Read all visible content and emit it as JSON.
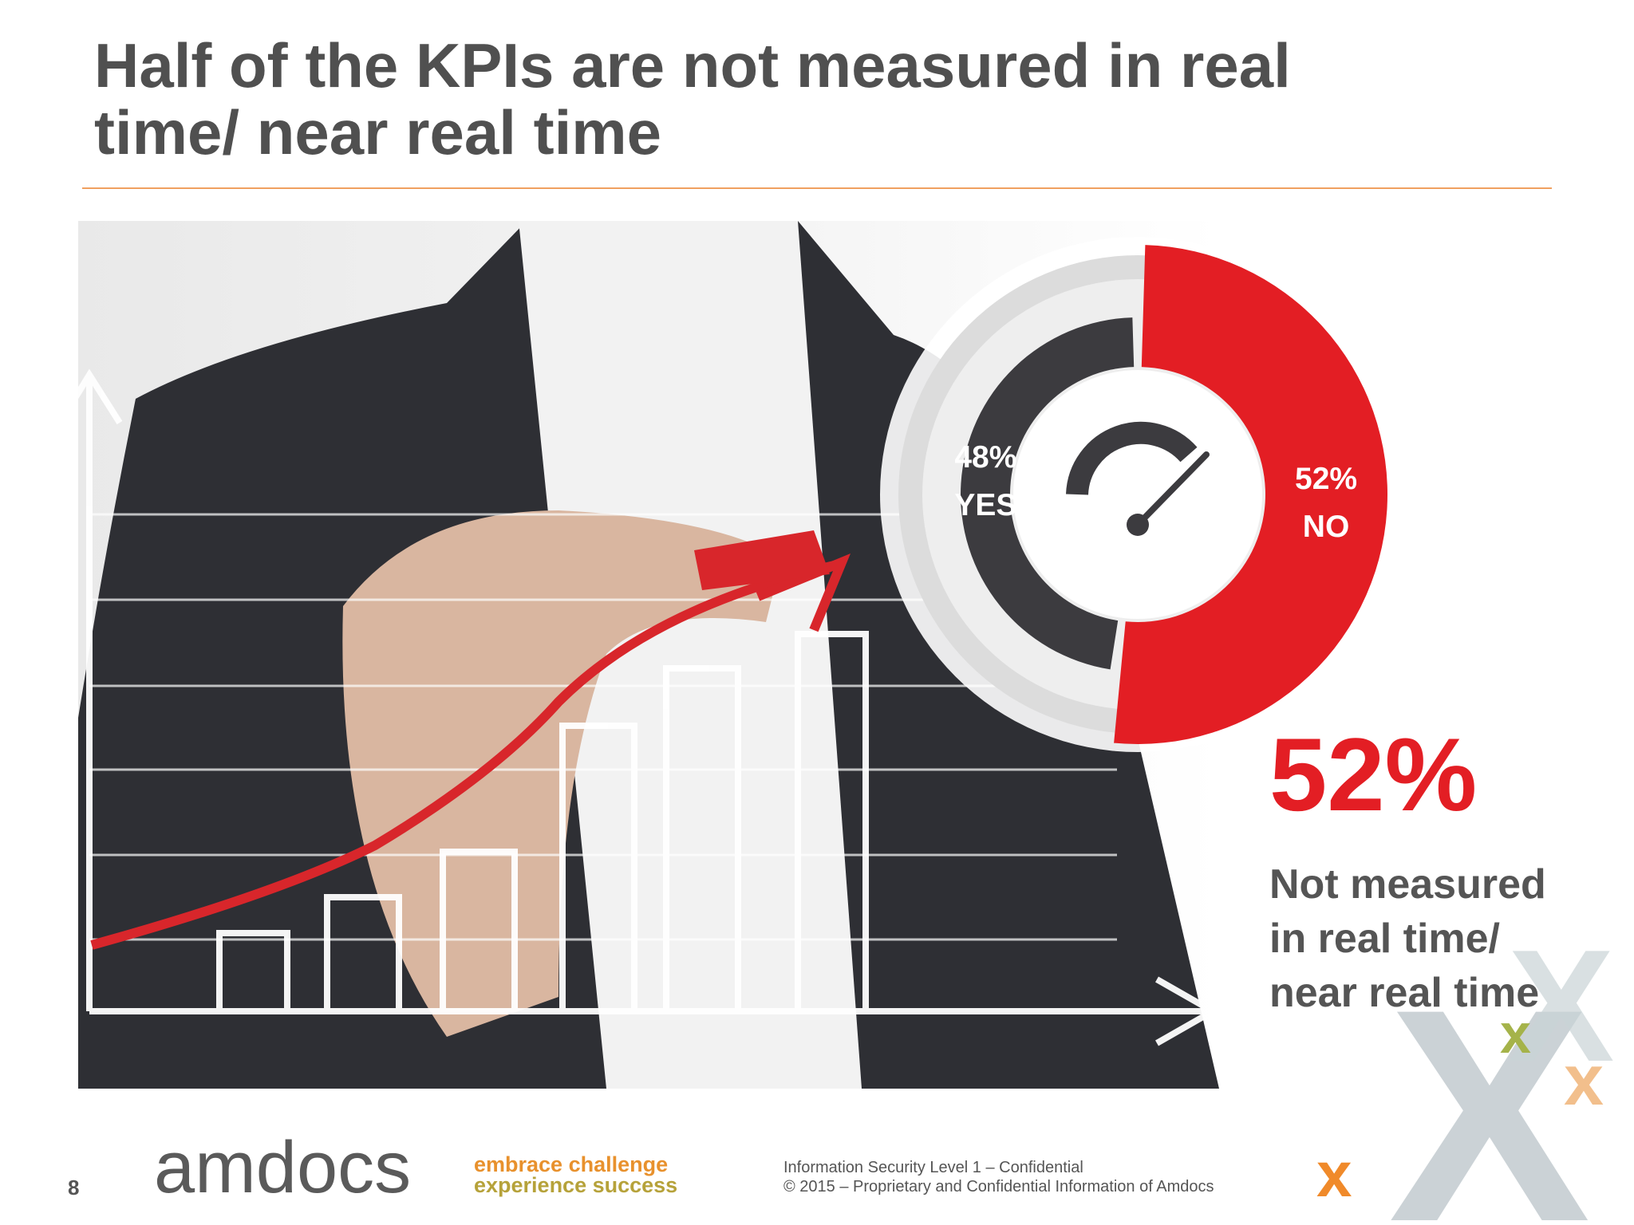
{
  "title": "Half of the KPIs are not measured in real time/ near real time",
  "chart_data": {
    "type": "donut",
    "categories": [
      "YES",
      "NO"
    ],
    "values": [
      48,
      52
    ],
    "value_labels": [
      "48%",
      "52%"
    ],
    "colors": [
      "#3c3b3f",
      "#e31e24"
    ]
  },
  "callout": {
    "figure": "52%",
    "lines": [
      "Not measured",
      "in real time/",
      "near real time"
    ]
  },
  "footer": {
    "page": "8",
    "logo": "amdocs",
    "tagline": [
      "embrace challenge",
      "experience success"
    ],
    "notice": [
      "Information Security Level 1 – Confidential",
      "© 2015 – Proprietary and Confidential Information of Amdocs"
    ]
  }
}
